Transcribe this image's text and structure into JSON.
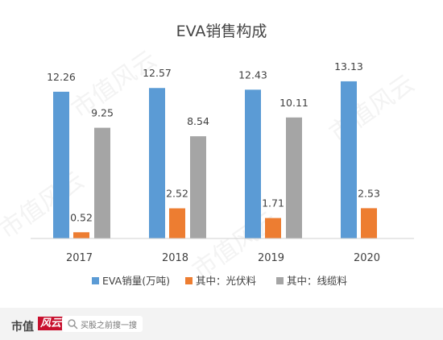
{
  "chart_data": {
    "type": "bar",
    "title": "EVA销售构成",
    "categories": [
      "2017",
      "2018",
      "2019",
      "2020"
    ],
    "series": [
      {
        "name": "EVA销量(万吨)",
        "color": "#5b9bd5",
        "values": [
          12.26,
          12.57,
          12.43,
          13.13
        ],
        "labels": [
          "12.26",
          "12.57",
          "12.43",
          "13.13"
        ]
      },
      {
        "name": "其中：光伏料",
        "color": "#ed7d31",
        "values": [
          0.52,
          2.52,
          1.71,
          2.53
        ],
        "labels": [
          "0.52",
          "2.52",
          "1.71",
          "2.53"
        ]
      },
      {
        "name": "其中：线缆料",
        "color": "#a5a5a5",
        "values": [
          9.25,
          8.54,
          10.11,
          null
        ],
        "labels": [
          "9.25",
          "8.54",
          "10.11",
          null
        ]
      }
    ],
    "ylim": [
      0,
      14
    ],
    "grid": false,
    "legend_position": "bottom"
  },
  "watermark": {
    "text": "市值风云"
  },
  "footer": {
    "brand": "市值",
    "brand_mark": "风云",
    "search_text": "买股之前搜一搜",
    "search_icon": "search-icon"
  }
}
